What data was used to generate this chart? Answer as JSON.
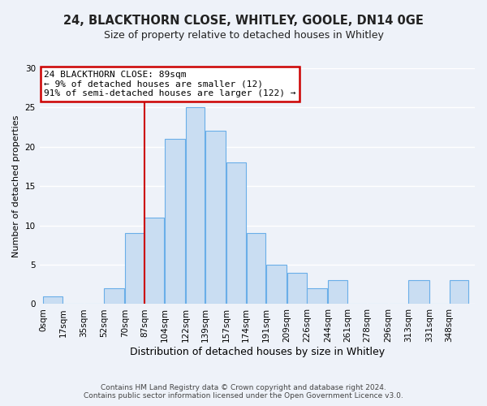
{
  "title": "24, BLACKTHORN CLOSE, WHITLEY, GOOLE, DN14 0GE",
  "subtitle": "Size of property relative to detached houses in Whitley",
  "xlabel": "Distribution of detached houses by size in Whitley",
  "ylabel": "Number of detached properties",
  "bar_labels": [
    "0sqm",
    "17sqm",
    "35sqm",
    "52sqm",
    "70sqm",
    "87sqm",
    "104sqm",
    "122sqm",
    "139sqm",
    "157sqm",
    "174sqm",
    "191sqm",
    "209sqm",
    "226sqm",
    "244sqm",
    "261sqm",
    "278sqm",
    "296sqm",
    "313sqm",
    "331sqm",
    "348sqm"
  ],
  "bar_values": [
    1,
    0,
    0,
    2,
    9,
    11,
    21,
    25,
    22,
    18,
    9,
    5,
    4,
    2,
    3,
    0,
    0,
    0,
    3,
    0,
    3
  ],
  "bin_edges": [
    0,
    17,
    35,
    52,
    70,
    87,
    104,
    122,
    139,
    157,
    174,
    191,
    209,
    226,
    244,
    261,
    278,
    296,
    313,
    331,
    348,
    365
  ],
  "bar_color": "#c9ddf2",
  "bar_edge_color": "#6aaee8",
  "ylim": [
    0,
    30
  ],
  "yticks": [
    0,
    5,
    10,
    15,
    20,
    25,
    30
  ],
  "vline_x": 87,
  "annotation_title": "24 BLACKTHORN CLOSE: 89sqm",
  "annotation_line1": "← 9% of detached houses are smaller (12)",
  "annotation_line2": "91% of semi-detached houses are larger (122) →",
  "annotation_box_color": "#ffffff",
  "annotation_box_edge_color": "#cc0000",
  "vline_color": "#cc0000",
  "footer1": "Contains HM Land Registry data © Crown copyright and database right 2024.",
  "footer2": "Contains public sector information licensed under the Open Government Licence v3.0.",
  "background_color": "#eef2f9",
  "grid_color": "#ffffff",
  "title_fontsize": 10.5,
  "subtitle_fontsize": 9,
  "ylabel_fontsize": 8,
  "xlabel_fontsize": 9,
  "tick_fontsize": 7.5,
  "footer_fontsize": 6.5,
  "annotation_fontsize": 8
}
